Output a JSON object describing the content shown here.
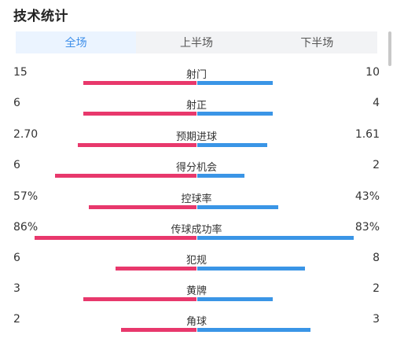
{
  "title": "技术统计",
  "tabs": [
    {
      "label": "全场",
      "active": true
    },
    {
      "label": "上半场",
      "active": false
    },
    {
      "label": "下半场",
      "active": false
    }
  ],
  "colors": {
    "home": "#e8386c",
    "away": "#3a95e6",
    "accent": "#3f8fea"
  },
  "stats": [
    {
      "label": "射门",
      "home": "15",
      "away": "10",
      "home_share": 0.6,
      "away_share": 0.4
    },
    {
      "label": "射正",
      "home": "6",
      "away": "4",
      "home_share": 0.6,
      "away_share": 0.4
    },
    {
      "label": "预期进球",
      "home": "2.70",
      "away": "1.61",
      "home_share": 0.63,
      "away_share": 0.37
    },
    {
      "label": "得分机会",
      "home": "6",
      "away": "2",
      "home_share": 0.75,
      "away_share": 0.25
    },
    {
      "label": "控球率",
      "home": "57%",
      "away": "43%",
      "home_share": 0.57,
      "away_share": 0.43
    },
    {
      "label": "传球成功率",
      "home": "86%",
      "away": "83%",
      "home_share": 0.86,
      "away_share": 0.83
    },
    {
      "label": "犯规",
      "home": "6",
      "away": "8",
      "home_share": 0.43,
      "away_share": 0.57
    },
    {
      "label": "黄牌",
      "home": "3",
      "away": "2",
      "home_share": 0.6,
      "away_share": 0.4
    },
    {
      "label": "角球",
      "home": "2",
      "away": "3",
      "home_share": 0.4,
      "away_share": 0.6
    }
  ]
}
